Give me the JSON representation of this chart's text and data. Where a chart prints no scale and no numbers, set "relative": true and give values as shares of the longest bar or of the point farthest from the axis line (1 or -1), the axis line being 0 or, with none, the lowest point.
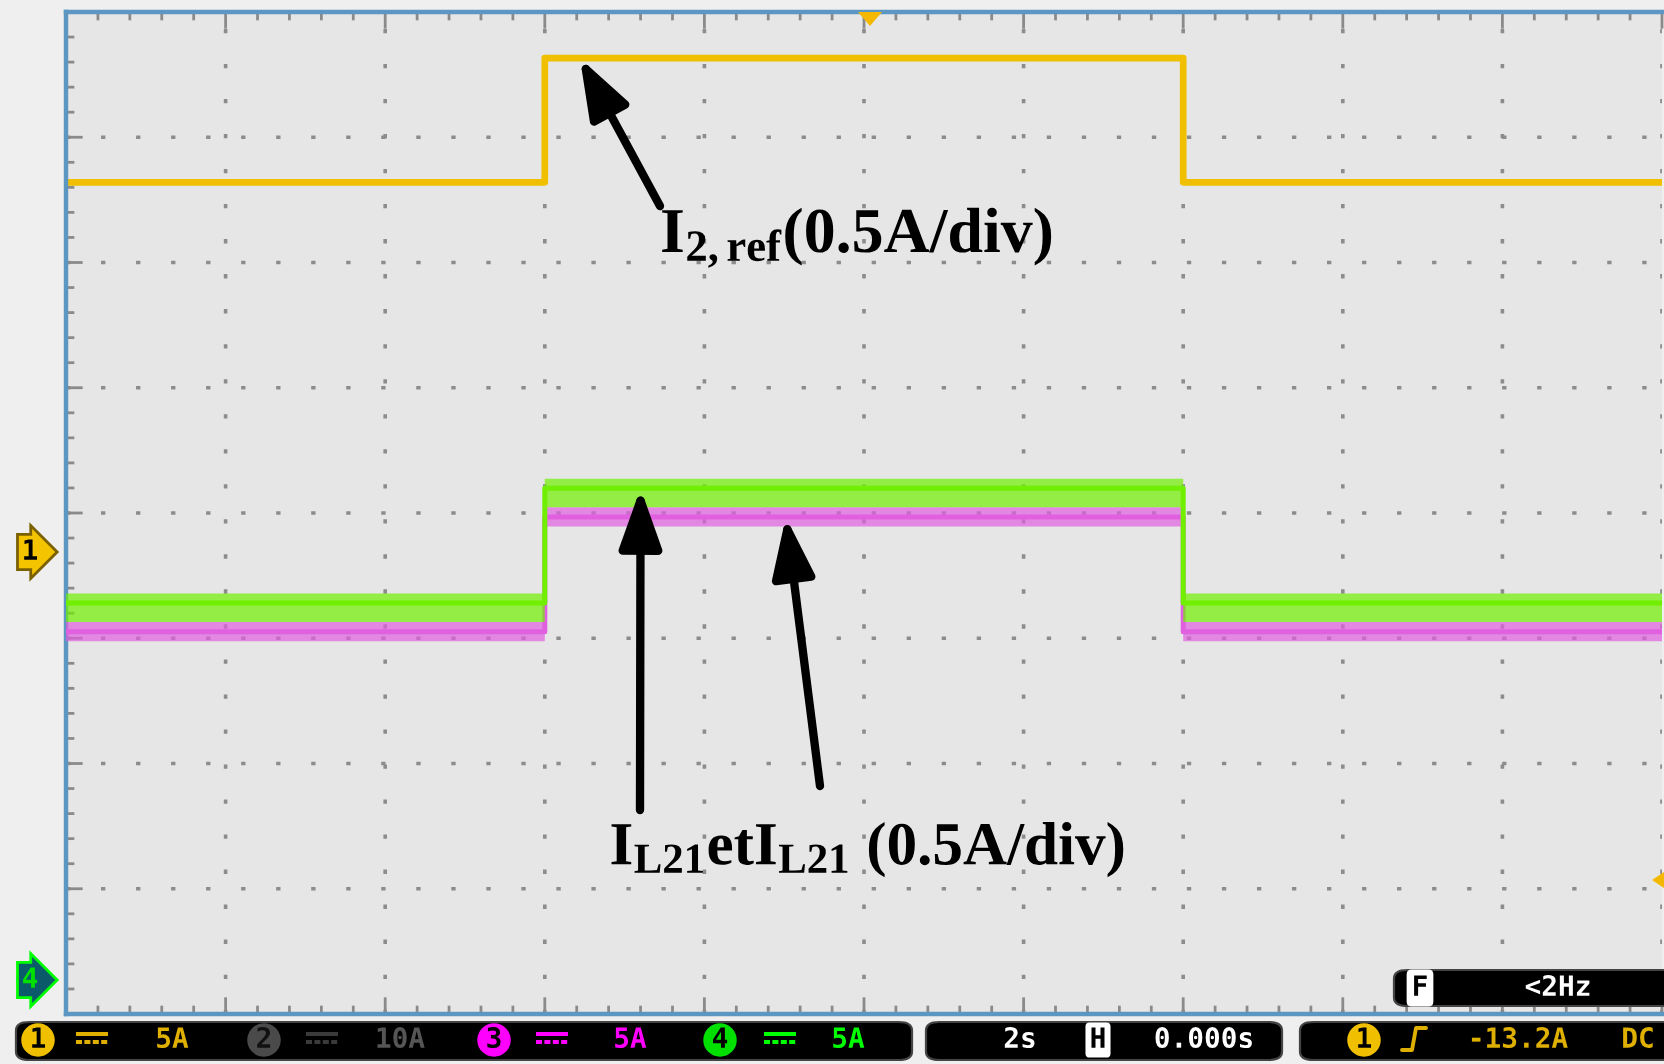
{
  "chart_data": {
    "type": "step",
    "relative": true,
    "categories": [
      null,
      null,
      null,
      null,
      null,
      null,
      null,
      null,
      null,
      null,
      null
    ],
    "series": [
      {
        "color": "#f0c000",
        "values": [
          0.87,
          0.87,
          0.87,
          1.0,
          1.0,
          1.0,
          1.0,
          0.87,
          0.87,
          0.87,
          0.87
        ]
      },
      {
        "color": "#e060e0",
        "values": [
          0.4,
          0.4,
          0.4,
          0.52,
          0.52,
          0.52,
          0.52,
          0.4,
          0.4,
          0.4,
          0.4
        ],
        "lower": [
          0.39,
          0.39,
          0.39,
          0.51,
          0.51,
          0.51,
          0.51,
          0.39,
          0.39,
          0.39,
          0.39
        ],
        "upper": [
          0.41,
          0.41,
          0.41,
          0.53,
          0.53,
          0.53,
          0.53,
          0.41,
          0.41,
          0.41,
          0.41
        ]
      },
      {
        "color": "#70f000",
        "values": [
          0.43,
          0.43,
          0.43,
          0.55,
          0.55,
          0.55,
          0.55,
          0.43,
          0.43,
          0.43,
          0.43
        ],
        "lower": [
          0.41,
          0.41,
          0.41,
          0.53,
          0.53,
          0.53,
          0.53,
          0.41,
          0.41,
          0.41,
          0.41
        ],
        "upper": [
          0.44,
          0.44,
          0.44,
          0.56,
          0.56,
          0.56,
          0.56,
          0.44,
          0.44,
          0.44,
          0.44
        ]
      }
    ],
    "grid": true,
    "annotations": [
      "I$_{2,ref}$(0.5A/div)",
      "I$_{L21}$etI$_{L21}$ (0.5A/div)",
      "1",
      "4",
      "1",
      "5A",
      "2",
      "10A",
      "3",
      "5A",
      "4",
      "5A",
      "2s",
      "H",
      "0.000s",
      "1",
      "-13.2A",
      "DC",
      "F",
      "<2Hz"
    ]
  }
}
